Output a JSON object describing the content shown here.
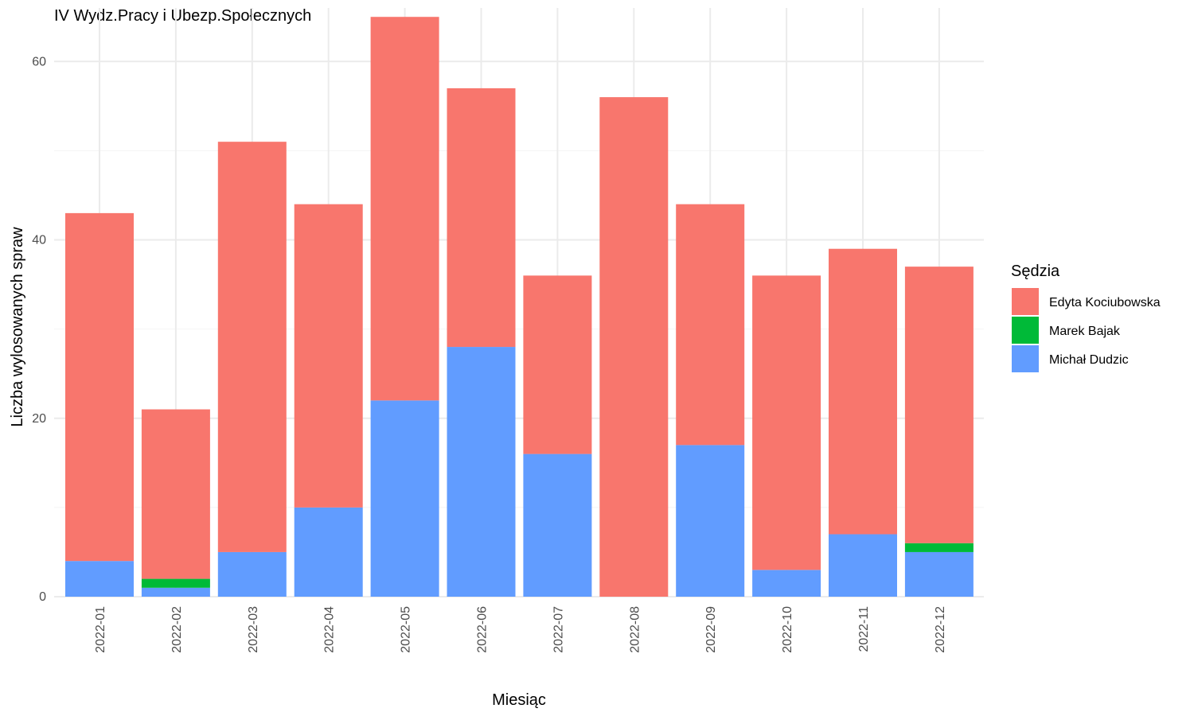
{
  "chart_data": {
    "type": "bar",
    "stacked": true,
    "title": "IV Wydz.Pracy i Ubezp.Społecznych",
    "xlabel": "Miesiąc",
    "ylabel": "Liczba wylosowanych spraw",
    "ylim": [
      0,
      66
    ],
    "yticks": [
      0,
      20,
      40,
      60
    ],
    "grid": true,
    "legend": {
      "title": "Sędzia",
      "placement": "right"
    },
    "categories": [
      "2022-01",
      "2022-02",
      "2022-03",
      "2022-04",
      "2022-05",
      "2022-06",
      "2022-07",
      "2022-08",
      "2022-09",
      "2022-10",
      "2022-11",
      "2022-12"
    ],
    "series": [
      {
        "name": "Michał Dudzic",
        "color": "#619CFF",
        "values": [
          4,
          1,
          5,
          10,
          22,
          28,
          16,
          0,
          17,
          3,
          7,
          5
        ]
      },
      {
        "name": "Marek Bajak",
        "color": "#00BA38",
        "values": [
          0,
          1,
          0,
          0,
          0,
          0,
          0,
          0,
          0,
          0,
          0,
          1
        ]
      },
      {
        "name": "Edyta Kociubowska",
        "color": "#F8766D",
        "values": [
          39,
          19,
          46,
          34,
          43,
          29,
          20,
          56,
          27,
          33,
          32,
          31
        ]
      }
    ],
    "legend_order": [
      "Edyta Kociubowska",
      "Marek Bajak",
      "Michał Dudzic"
    ]
  }
}
